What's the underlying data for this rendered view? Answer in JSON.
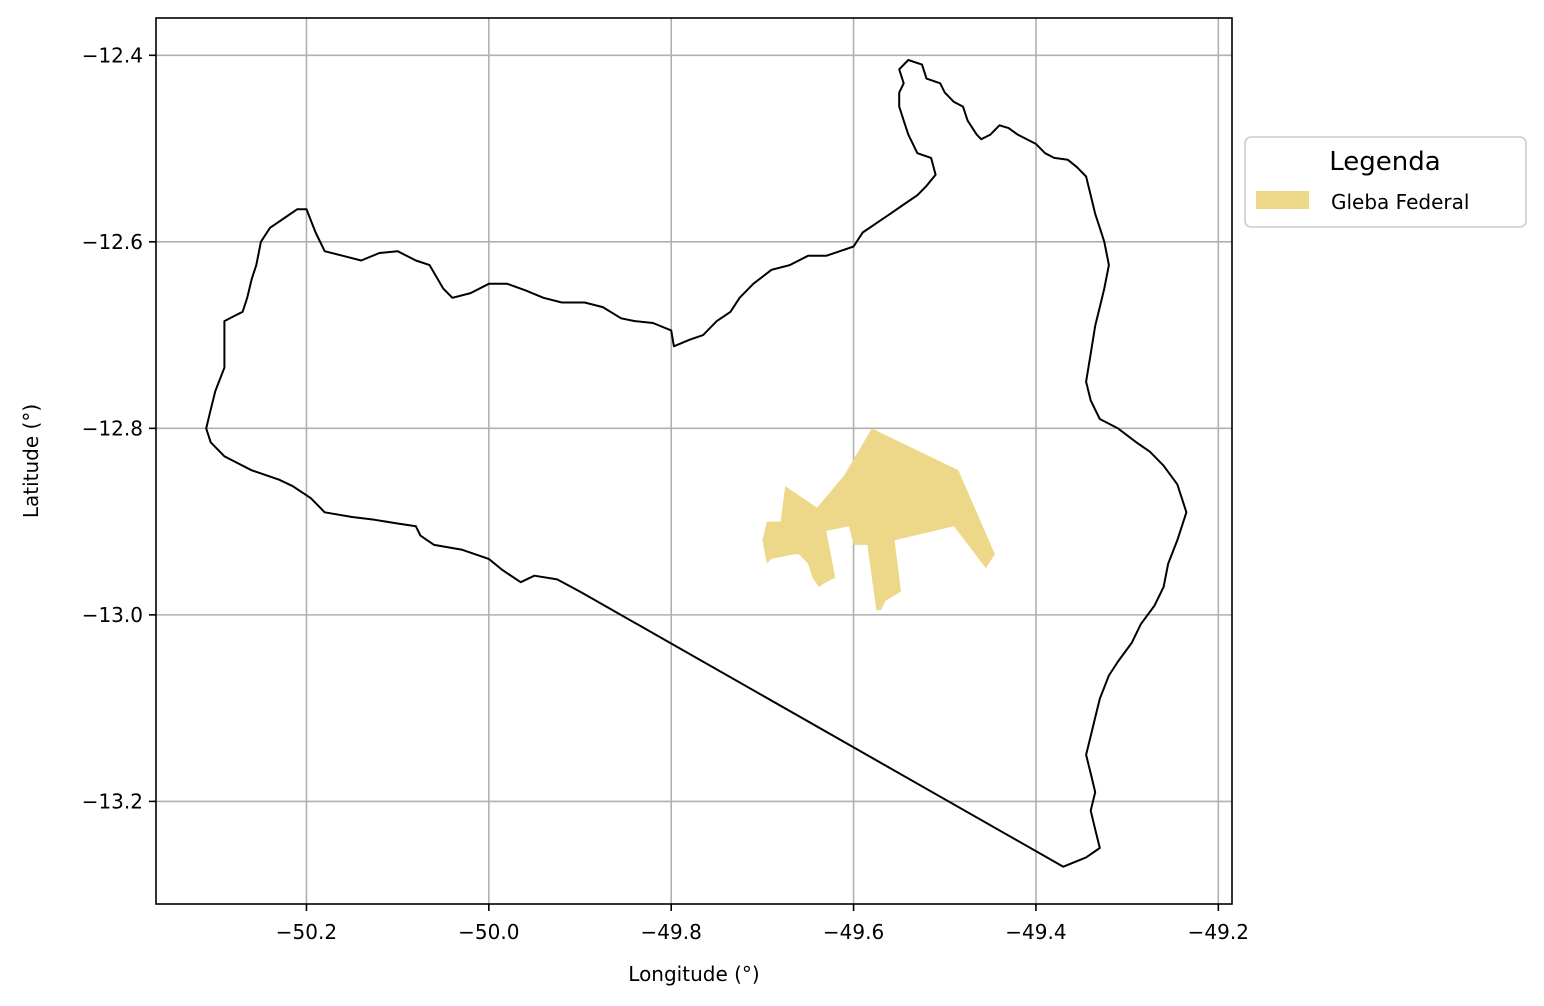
{
  "chart_data": {
    "type": "map",
    "xlabel": "Longitude (°)",
    "ylabel": "Latitude (°)",
    "xlim": [
      -50.365,
      -49.185
    ],
    "ylim": [
      -13.31,
      -12.36
    ],
    "x_ticks": [
      {
        "value": -50.2,
        "label": "−50.2"
      },
      {
        "value": -50.0,
        "label": "−50.0"
      },
      {
        "value": -49.8,
        "label": "−49.8"
      },
      {
        "value": -49.6,
        "label": "−49.6"
      },
      {
        "value": -49.4,
        "label": "−49.4"
      },
      {
        "value": -49.2,
        "label": "−49.2"
      }
    ],
    "y_ticks": [
      {
        "value": -12.4,
        "label": "−12.4"
      },
      {
        "value": -12.6,
        "label": "−12.6"
      },
      {
        "value": -12.8,
        "label": "−12.8"
      },
      {
        "value": -13.0,
        "label": "−13.0"
      },
      {
        "value": -13.2,
        "label": "−13.2"
      }
    ],
    "grid": true,
    "legend": {
      "title": "Legenda",
      "placement": "outside-right",
      "entries": [
        {
          "label": "Gleba Federal",
          "color": "#ecd888"
        }
      ]
    },
    "boundary": {
      "color": "#000000",
      "coordinates": [
        [
          -49.9,
          -12.975
        ],
        [
          -49.925,
          -12.962
        ],
        [
          -49.95,
          -12.958
        ],
        [
          -49.965,
          -12.965
        ],
        [
          -49.985,
          -12.952
        ],
        [
          -50.0,
          -12.94
        ],
        [
          -50.03,
          -12.93
        ],
        [
          -50.06,
          -12.925
        ],
        [
          -50.075,
          -12.915
        ],
        [
          -50.08,
          -12.905
        ],
        [
          -50.1,
          -12.902
        ],
        [
          -50.125,
          -12.898
        ],
        [
          -50.15,
          -12.895
        ],
        [
          -50.18,
          -12.89
        ],
        [
          -50.195,
          -12.875
        ],
        [
          -50.215,
          -12.862
        ],
        [
          -50.23,
          -12.855
        ],
        [
          -50.26,
          -12.845
        ],
        [
          -50.28,
          -12.835
        ],
        [
          -50.29,
          -12.83
        ],
        [
          -50.305,
          -12.815
        ],
        [
          -50.31,
          -12.8
        ],
        [
          -50.305,
          -12.78
        ],
        [
          -50.3,
          -12.76
        ],
        [
          -50.29,
          -12.735
        ],
        [
          -50.29,
          -12.71
        ],
        [
          -50.29,
          -12.685
        ],
        [
          -50.28,
          -12.68
        ],
        [
          -50.27,
          -12.675
        ],
        [
          -50.265,
          -12.66
        ],
        [
          -50.26,
          -12.64
        ],
        [
          -50.255,
          -12.625
        ],
        [
          -50.25,
          -12.6
        ],
        [
          -50.24,
          -12.585
        ],
        [
          -50.225,
          -12.575
        ],
        [
          -50.21,
          -12.565
        ],
        [
          -50.2,
          -12.565
        ],
        [
          -50.19,
          -12.59
        ],
        [
          -50.18,
          -12.61
        ],
        [
          -50.16,
          -12.615
        ],
        [
          -50.14,
          -12.62
        ],
        [
          -50.12,
          -12.612
        ],
        [
          -50.1,
          -12.61
        ],
        [
          -50.08,
          -12.62
        ],
        [
          -50.065,
          -12.625
        ],
        [
          -50.05,
          -12.65
        ],
        [
          -50.04,
          -12.66
        ],
        [
          -50.02,
          -12.655
        ],
        [
          -50.0,
          -12.645
        ],
        [
          -49.98,
          -12.645
        ],
        [
          -49.96,
          -12.652
        ],
        [
          -49.94,
          -12.66
        ],
        [
          -49.92,
          -12.665
        ],
        [
          -49.895,
          -12.665
        ],
        [
          -49.875,
          -12.67
        ],
        [
          -49.855,
          -12.682
        ],
        [
          -49.84,
          -12.685
        ],
        [
          -49.82,
          -12.687
        ],
        [
          -49.8,
          -12.695
        ],
        [
          -49.797,
          -12.712
        ],
        [
          -49.78,
          -12.705
        ],
        [
          -49.765,
          -12.7
        ],
        [
          -49.75,
          -12.685
        ],
        [
          -49.735,
          -12.675
        ],
        [
          -49.725,
          -12.66
        ],
        [
          -49.71,
          -12.645
        ],
        [
          -49.69,
          -12.63
        ],
        [
          -49.67,
          -12.625
        ],
        [
          -49.65,
          -12.615
        ],
        [
          -49.63,
          -12.615
        ],
        [
          -49.615,
          -12.61
        ],
        [
          -49.6,
          -12.605
        ],
        [
          -49.59,
          -12.59
        ],
        [
          -49.575,
          -12.58
        ],
        [
          -49.56,
          -12.57
        ],
        [
          -49.545,
          -12.56
        ],
        [
          -49.53,
          -12.55
        ],
        [
          -49.52,
          -12.54
        ],
        [
          -49.51,
          -12.528
        ],
        [
          -49.515,
          -12.51
        ],
        [
          -49.53,
          -12.505
        ],
        [
          -49.54,
          -12.485
        ],
        [
          -49.545,
          -12.47
        ],
        [
          -49.55,
          -12.455
        ],
        [
          -49.55,
          -12.44
        ],
        [
          -49.545,
          -12.43
        ],
        [
          -49.55,
          -12.415
        ],
        [
          -49.54,
          -12.405
        ],
        [
          -49.525,
          -12.41
        ],
        [
          -49.52,
          -12.425
        ],
        [
          -49.505,
          -12.43
        ],
        [
          -49.5,
          -12.44
        ],
        [
          -49.49,
          -12.45
        ],
        [
          -49.48,
          -12.455
        ],
        [
          -49.475,
          -12.47
        ],
        [
          -49.465,
          -12.485
        ],
        [
          -49.46,
          -12.49
        ],
        [
          -49.45,
          -12.485
        ],
        [
          -49.44,
          -12.475
        ],
        [
          -49.43,
          -12.478
        ],
        [
          -49.42,
          -12.485
        ],
        [
          -49.4,
          -12.495
        ],
        [
          -49.39,
          -12.505
        ],
        [
          -49.38,
          -12.51
        ],
        [
          -49.365,
          -12.512
        ],
        [
          -49.355,
          -12.52
        ],
        [
          -49.345,
          -12.53
        ],
        [
          -49.34,
          -12.55
        ],
        [
          -49.335,
          -12.57
        ],
        [
          -49.33,
          -12.585
        ],
        [
          -49.325,
          -12.6
        ],
        [
          -49.32,
          -12.625
        ],
        [
          -49.325,
          -12.65
        ],
        [
          -49.33,
          -12.67
        ],
        [
          -49.335,
          -12.69
        ],
        [
          -49.34,
          -12.72
        ],
        [
          -49.345,
          -12.75
        ],
        [
          -49.34,
          -12.77
        ],
        [
          -49.33,
          -12.79
        ],
        [
          -49.31,
          -12.8
        ],
        [
          -49.29,
          -12.815
        ],
        [
          -49.275,
          -12.825
        ],
        [
          -49.26,
          -12.84
        ],
        [
          -49.245,
          -12.86
        ],
        [
          -49.235,
          -12.89
        ],
        [
          -49.245,
          -12.92
        ],
        [
          -49.255,
          -12.945
        ],
        [
          -49.26,
          -12.97
        ],
        [
          -49.27,
          -12.99
        ],
        [
          -49.285,
          -13.01
        ],
        [
          -49.295,
          -13.03
        ],
        [
          -49.31,
          -13.05
        ],
        [
          -49.32,
          -13.065
        ],
        [
          -49.33,
          -13.09
        ],
        [
          -49.335,
          -13.11
        ],
        [
          -49.34,
          -13.13
        ],
        [
          -49.345,
          -13.15
        ],
        [
          -49.34,
          -13.17
        ],
        [
          -49.335,
          -13.19
        ],
        [
          -49.34,
          -13.21
        ],
        [
          -49.335,
          -13.23
        ],
        [
          -49.33,
          -13.25
        ],
        [
          -49.345,
          -13.26
        ],
        [
          -49.37,
          -13.27
        ],
        [
          -49.9,
          -12.975
        ]
      ]
    },
    "gleba_federal": {
      "color": "#ecd888",
      "coordinates": [
        [
          -49.58,
          -12.8
        ],
        [
          -49.485,
          -12.845
        ],
        [
          -49.445,
          -12.935
        ],
        [
          -49.455,
          -12.95
        ],
        [
          -49.49,
          -12.905
        ],
        [
          -49.555,
          -12.92
        ],
        [
          -49.548,
          -12.975
        ],
        [
          -49.565,
          -12.985
        ],
        [
          -49.57,
          -12.995
        ],
        [
          -49.575,
          -12.995
        ],
        [
          -49.585,
          -12.925
        ],
        [
          -49.6,
          -12.925
        ],
        [
          -49.605,
          -12.905
        ],
        [
          -49.63,
          -12.91
        ],
        [
          -49.62,
          -12.96
        ],
        [
          -49.63,
          -12.965
        ],
        [
          -49.638,
          -12.97
        ],
        [
          -49.645,
          -12.96
        ],
        [
          -49.65,
          -12.945
        ],
        [
          -49.66,
          -12.935
        ],
        [
          -49.665,
          -12.935
        ],
        [
          -49.69,
          -12.94
        ],
        [
          -49.695,
          -12.945
        ],
        [
          -49.7,
          -12.92
        ],
        [
          -49.695,
          -12.9
        ],
        [
          -49.68,
          -12.9
        ],
        [
          -49.675,
          -12.862
        ],
        [
          -49.64,
          -12.885
        ],
        [
          -49.61,
          -12.85
        ]
      ]
    }
  }
}
